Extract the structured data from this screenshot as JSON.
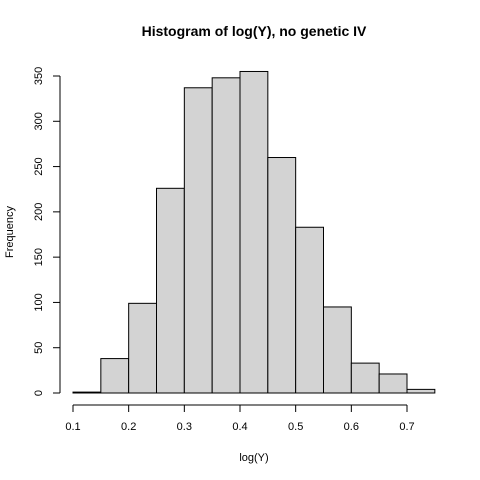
{
  "chart_data": {
    "type": "bar",
    "title": "Histogram of log(Y), no genetic IV",
    "xlabel": "log(Y)",
    "ylabel": "Frequency",
    "bins": [
      {
        "from": 0.1,
        "to": 0.15,
        "count": 1
      },
      {
        "from": 0.15,
        "to": 0.2,
        "count": 38
      },
      {
        "from": 0.2,
        "to": 0.25,
        "count": 99
      },
      {
        "from": 0.25,
        "to": 0.3,
        "count": 226
      },
      {
        "from": 0.3,
        "to": 0.35,
        "count": 337
      },
      {
        "from": 0.35,
        "to": 0.4,
        "count": 348
      },
      {
        "from": 0.4,
        "to": 0.45,
        "count": 355
      },
      {
        "from": 0.45,
        "to": 0.5,
        "count": 260
      },
      {
        "from": 0.5,
        "to": 0.55,
        "count": 183
      },
      {
        "from": 0.55,
        "to": 0.6,
        "count": 95
      },
      {
        "from": 0.6,
        "to": 0.65,
        "count": 33
      },
      {
        "from": 0.65,
        "to": 0.7,
        "count": 21
      },
      {
        "from": 0.7,
        "to": 0.75,
        "count": 4
      }
    ],
    "xlim": [
      0.1,
      0.75
    ],
    "ylim": [
      0,
      355
    ],
    "x_ticks": [
      "0.1",
      "0.2",
      "0.3",
      "0.4",
      "0.5",
      "0.6",
      "0.7"
    ],
    "y_ticks": [
      "0",
      "50",
      "100",
      "150",
      "200",
      "250",
      "300",
      "350"
    ],
    "grid": false,
    "bar_fill": "#d3d3d3",
    "bar_stroke": "#000000"
  }
}
